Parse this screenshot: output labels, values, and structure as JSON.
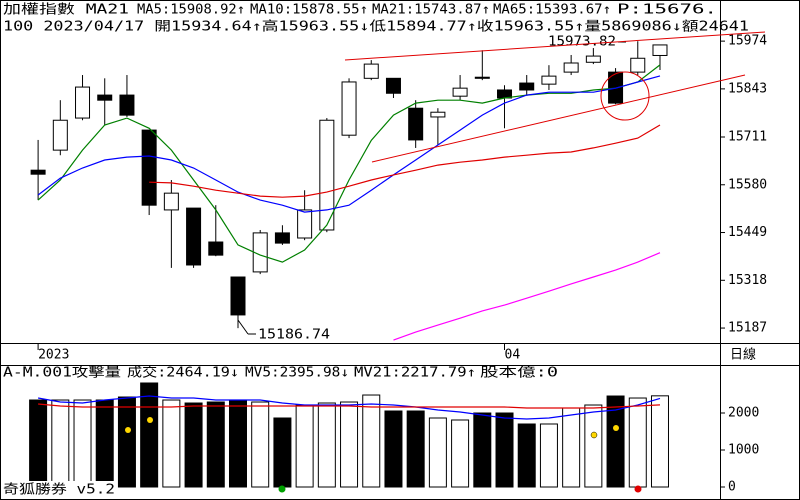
{
  "chart_data": [
    {
      "type": "candlestick",
      "title": "加權指數 MA21",
      "subtitle": "100 2023/04/17 開15934.64↑高15963.55↓低15894.77↑收15963.55↑量5869086↓額24641",
      "categories": [
        "2023",
        null,
        null,
        null,
        null,
        null,
        null,
        null,
        null,
        null,
        null,
        null,
        null,
        null,
        null,
        null,
        null,
        null,
        null,
        null,
        null,
        "04",
        null,
        null,
        null,
        null,
        null,
        null,
        null
      ],
      "open": [
        15620,
        15675,
        15763,
        15826,
        15826,
        15730,
        15511,
        15516,
        15423,
        15327,
        15341,
        15448,
        15434,
        15456,
        15716,
        15872,
        15872,
        15790,
        15766,
        15823,
        15875,
        15840,
        15859,
        15856,
        15889,
        15916,
        15889,
        15889,
        15934.64
      ],
      "high": [
        15703,
        15812,
        15881,
        15872,
        15881,
        15730,
        15593,
        15516,
        15524,
        15327,
        15456,
        15469,
        15565,
        15763,
        15872,
        15922,
        15872,
        15812,
        15790,
        15881,
        15949,
        15853,
        15881,
        15908,
        15936,
        15955,
        15900,
        15973.82,
        15963.55
      ],
      "low": [
        15538,
        15661,
        15757,
        15744,
        15766,
        15497,
        15352,
        15352,
        15384,
        15186.74,
        15335,
        15415,
        15428,
        15450,
        15708,
        15867,
        15818,
        15681,
        15689,
        15812,
        15867,
        15735,
        15826,
        15840,
        15881,
        15911,
        15801,
        15881,
        15894.77
      ],
      "close": [
        15609,
        15757,
        15848,
        15812,
        15771,
        15524,
        15557,
        15360,
        15387,
        15223,
        15448,
        15420,
        15511,
        15757,
        15862,
        15911,
        15831,
        15703,
        15779,
        15845,
        15872,
        15818,
        15840,
        15878,
        15914,
        15933,
        15804,
        15927,
        15963.55
      ],
      "up_color": "#ffffff",
      "down_color": "#000000",
      "series": [
        {
          "name": "MA5:15908.92↑",
          "color": "#008000",
          "values": [
            15538,
            15593,
            15675,
            15744,
            15763,
            15735,
            15675,
            15593,
            15511,
            15415,
            15387,
            15368,
            15401,
            15469,
            15593,
            15702,
            15771,
            15804,
            15812,
            15812,
            15804,
            15818,
            15826,
            15831,
            15831,
            15840,
            15845,
            15862,
            15908.92
          ]
        },
        {
          "name": "MA10:15878.55↑",
          "color": "#0000ff",
          "values": [
            15552,
            15598,
            15626,
            15648,
            15656,
            15659,
            15648,
            15626,
            15593,
            15560,
            15538,
            15524,
            15505,
            15511,
            15524,
            15565,
            15607,
            15648,
            15689,
            15730,
            15771,
            15804,
            15826,
            15834,
            15834,
            15834,
            15845,
            15862,
            15878.55
          ]
        },
        {
          "name": "MA21:15743.87↑",
          "color": "#e00000",
          "values": [
            null,
            null,
            null,
            null,
            null,
            15587,
            15585,
            15576,
            15565,
            15557,
            15549,
            15546,
            15549,
            15560,
            15576,
            15593,
            15607,
            15620,
            15634,
            15642,
            15648,
            15656,
            15661,
            15667,
            15670,
            15681,
            15694,
            15708,
            15743.87
          ]
        },
        {
          "name": "MA65:15393.67↑",
          "color": "#ff00ff",
          "values": [
            null,
            null,
            null,
            null,
            null,
            null,
            null,
            null,
            null,
            null,
            null,
            null,
            null,
            null,
            null,
            null,
            15154,
            15176,
            15195,
            15214,
            15234,
            15250,
            15269,
            15288,
            15308,
            15327,
            15346,
            15368,
            15393.67
          ]
        }
      ],
      "annotations": [
        "15973.82",
        "15186.74",
        "P:15676."
      ],
      "ylim": [
        15146,
        16010
      ],
      "yticks": [
        15187,
        15318,
        15449,
        15580,
        15711,
        15843,
        15974
      ]
    },
    {
      "type": "bar",
      "title": "A-M.001攻擊量",
      "series": [
        {
          "name": "成交:2464.19↓",
          "type": "bar",
          "color": "#008000",
          "values": [
            2351,
            2351,
            2351,
            2351,
            2432,
            2811,
            2351,
            2270,
            2297,
            2351,
            2297,
            1865,
            2216,
            2270,
            2297,
            2486,
            2054,
            2054,
            1865,
            1811,
            2000,
            2000,
            1703,
            1703,
            2135,
            2216,
            2459,
            2405,
            2464.19
          ]
        },
        {
          "name": "MV5:2395.98↓",
          "type": "line",
          "color": "#0000ff",
          "values": [
            2405,
            2297,
            2270,
            2351,
            2405,
            2459,
            2405,
            2405,
            2351,
            2351,
            2351,
            2270,
            2216,
            2216,
            2216,
            2243,
            2216,
            2162,
            2081,
            2027,
            1946,
            1865,
            1838,
            1865,
            1946,
            2027,
            2081,
            2216,
            2395.98
          ]
        },
        {
          "name": "MV21:2217.79↑",
          "type": "line",
          "color": "#e00000",
          "values": [
            2243,
            2189,
            2162,
            2162,
            2162,
            2162,
            2162,
            2189,
            2189,
            2189,
            2189,
            2189,
            2189,
            2189,
            2189,
            2162,
            2162,
            2162,
            2162,
            2162,
            2162,
            2162,
            2135,
            2135,
            2135,
            2135,
            2162,
            2189,
            2217.79
          ]
        }
      ],
      "annotations": [
        "股本億:0"
      ],
      "ylim": [
        -81,
        2892
      ],
      "yticks": [
        0,
        1000,
        2000
      ]
    }
  ],
  "period_label": "日線",
  "app_label": "奇狐勝券 v5.2"
}
